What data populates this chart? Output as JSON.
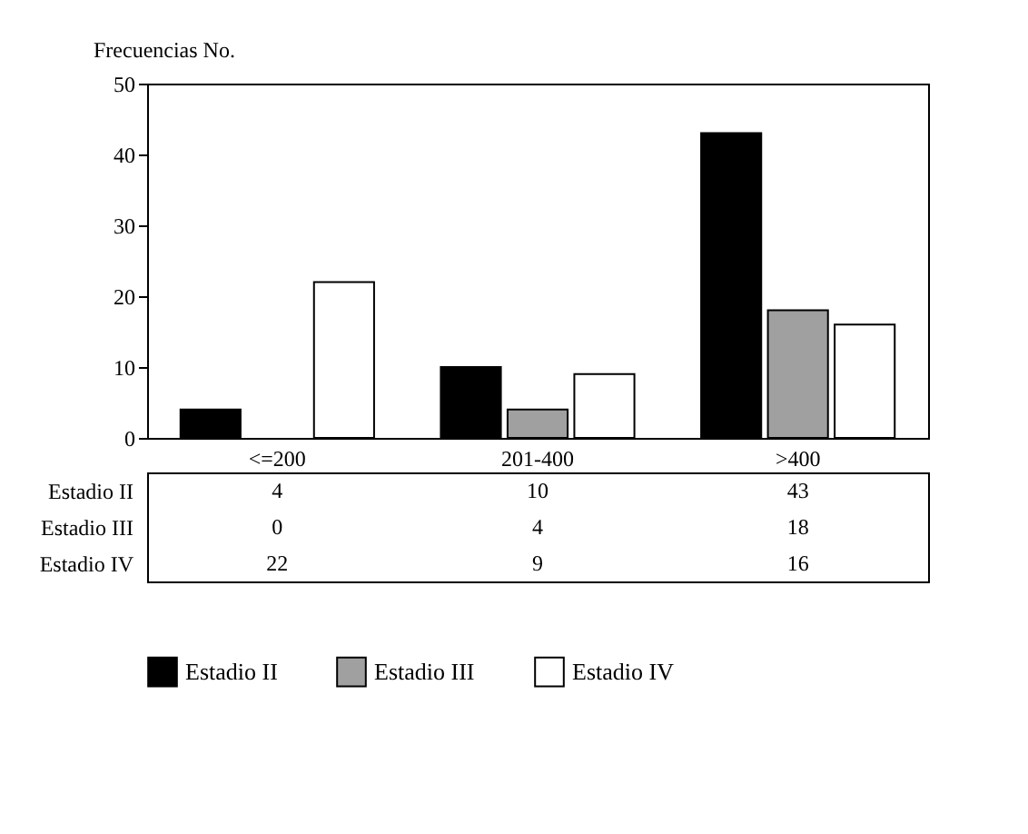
{
  "chart_data": {
    "type": "bar",
    "ylabel": "Frecuencias No.",
    "categories": [
      "<=200",
      "201-400",
      ">400"
    ],
    "series": [
      {
        "name": "Estadio II",
        "color": "#000000",
        "values": [
          4,
          10,
          43
        ]
      },
      {
        "name": "Estadio III",
        "color": "#a0a0a0",
        "values": [
          0,
          4,
          18
        ]
      },
      {
        "name": "Estadio IV",
        "color": "#ffffff",
        "values": [
          22,
          9,
          16
        ]
      }
    ],
    "ylim": [
      0,
      50
    ],
    "yticks": [
      0,
      10,
      20,
      30,
      40,
      50
    ],
    "grid": false,
    "legend": "bottom",
    "data_labels": true
  }
}
